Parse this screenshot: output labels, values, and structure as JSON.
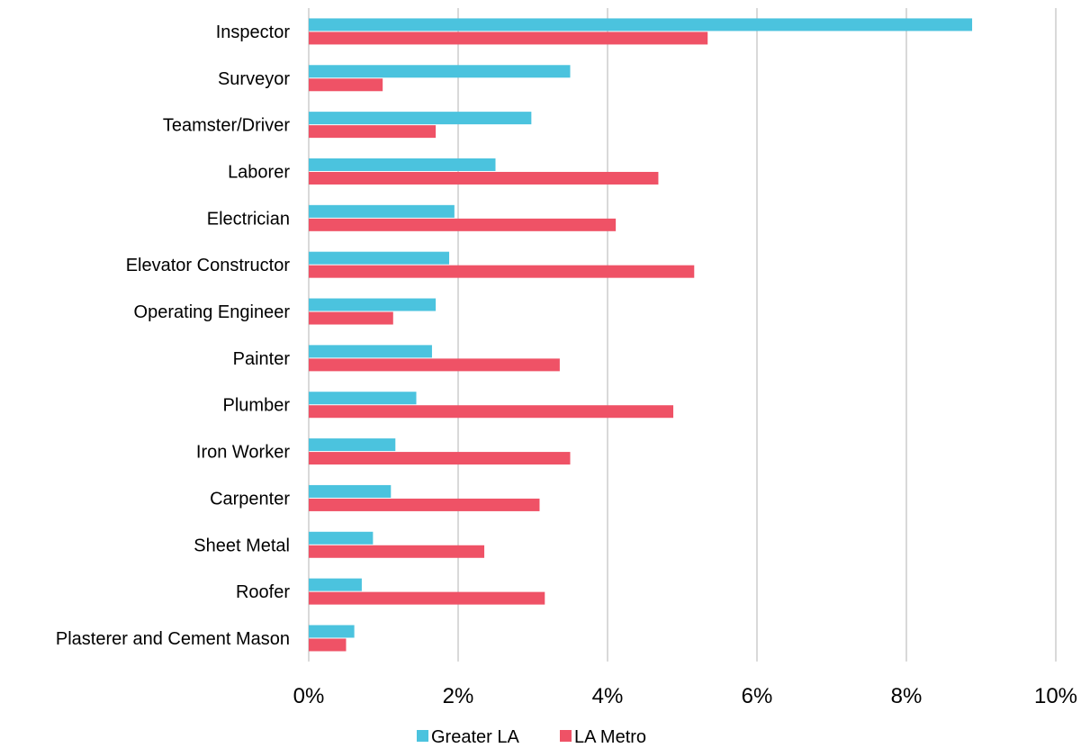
{
  "chart_data": {
    "type": "bar",
    "orientation": "horizontal",
    "categories": [
      "Inspector",
      "Surveyor",
      "Teamster/Driver",
      "Laborer",
      "Electrician",
      "Elevator Constructor",
      "Operating Engineer",
      "Painter",
      "Plumber",
      "Iron Worker",
      "Carpenter",
      "Sheet Metal",
      "Roofer",
      "Plasterer and Cement Mason"
    ],
    "series": [
      {
        "name": "Greater LA",
        "color": "#4bc3de",
        "values": [
          8.88,
          3.5,
          2.98,
          2.5,
          1.95,
          1.88,
          1.7,
          1.65,
          1.44,
          1.16,
          1.1,
          0.86,
          0.71,
          0.61
        ]
      },
      {
        "name": "LA Metro",
        "color": "#ef5266",
        "values": [
          5.34,
          0.99,
          1.7,
          4.68,
          4.11,
          5.16,
          1.13,
          3.36,
          4.88,
          3.5,
          3.09,
          2.35,
          3.16,
          0.5
        ]
      }
    ],
    "xlim": [
      0,
      10
    ],
    "xticks": [
      "0%",
      "2%",
      "4%",
      "6%",
      "8%",
      "10%"
    ],
    "grid": "vertical",
    "legend": "bottom",
    "title": "",
    "xlabel": "",
    "ylabel": ""
  }
}
